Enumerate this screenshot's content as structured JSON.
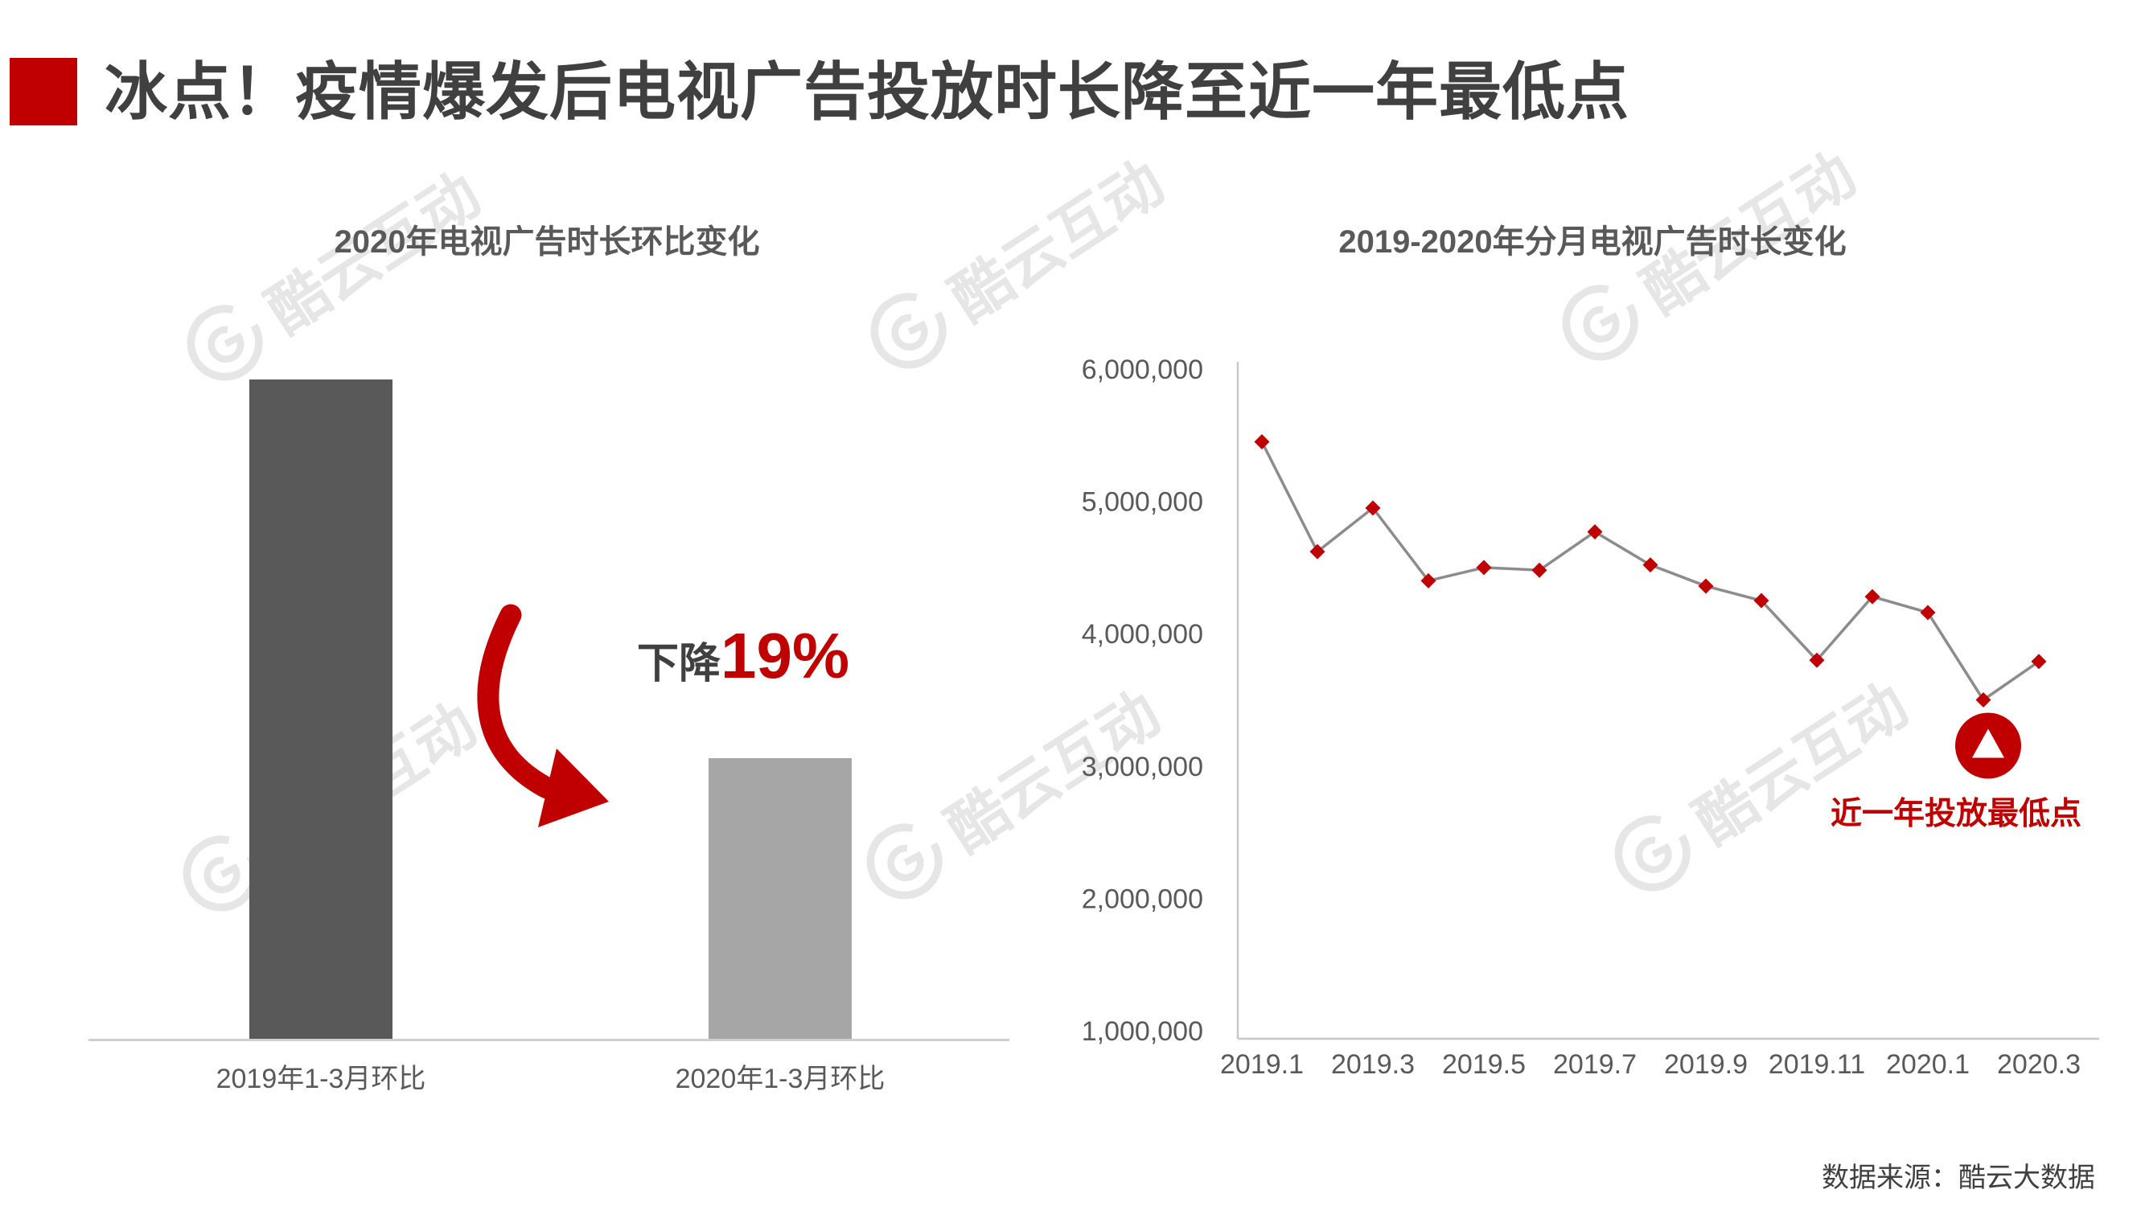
{
  "header": {
    "title": "冰点！疫情爆发后电视广告投放时长降至近一年最低点"
  },
  "source": {
    "label": "数据来源：酷云大数据"
  },
  "watermark": {
    "text": "酷云互动"
  },
  "colors": {
    "accent_red": "#c00000",
    "bar_dark": "#595959",
    "bar_light": "#a6a6a6",
    "line_gray": "#8c8c8c",
    "axis_gray": "#c8c8c8",
    "text_dark": "#404040",
    "text_gray": "#595959"
  },
  "chart_data": [
    {
      "type": "bar",
      "title": "2020年电视广告时长环比变化",
      "categories": [
        "2019年1-3月环比",
        "2020年1-3月环比"
      ],
      "values_relative": [
        1.0,
        0.425
      ],
      "bar_colors": [
        "#595959",
        "#a6a6a6"
      ],
      "value_axis": "none (no numeric axis shown)",
      "annotation": {
        "prefix": "下降",
        "value": "19%"
      }
    },
    {
      "type": "line",
      "title": "2019-2020年分月电视广告时长变化",
      "x": [
        "2019.1",
        "2019.2",
        "2019.3",
        "2019.4",
        "2019.5",
        "2019.6",
        "2019.7",
        "2019.8",
        "2019.9",
        "2019.10",
        "2019.11",
        "2019.12",
        "2020.1",
        "2020.2",
        "2020.3"
      ],
      "values": [
        5450000,
        4620000,
        4950000,
        4400000,
        4500000,
        4480000,
        4770000,
        4520000,
        4360000,
        4250000,
        3800000,
        4280000,
        4160000,
        3500000,
        3790000
      ],
      "x_tick_labels": [
        "2019.1",
        "2019.3",
        "2019.5",
        "2019.7",
        "2019.9",
        "2019.11",
        "2020.1",
        "2020.3"
      ],
      "y_ticks": [
        1000000,
        2000000,
        3000000,
        4000000,
        5000000,
        6000000
      ],
      "ylim": [
        1000000,
        6000000
      ],
      "grid": false,
      "line_color": "#8c8c8c",
      "marker": "diamond",
      "marker_color": "#c00000",
      "lowest_point": {
        "index": 13,
        "x": "2020.2",
        "value": 3500000,
        "label": "近一年投放最低点"
      }
    }
  ]
}
